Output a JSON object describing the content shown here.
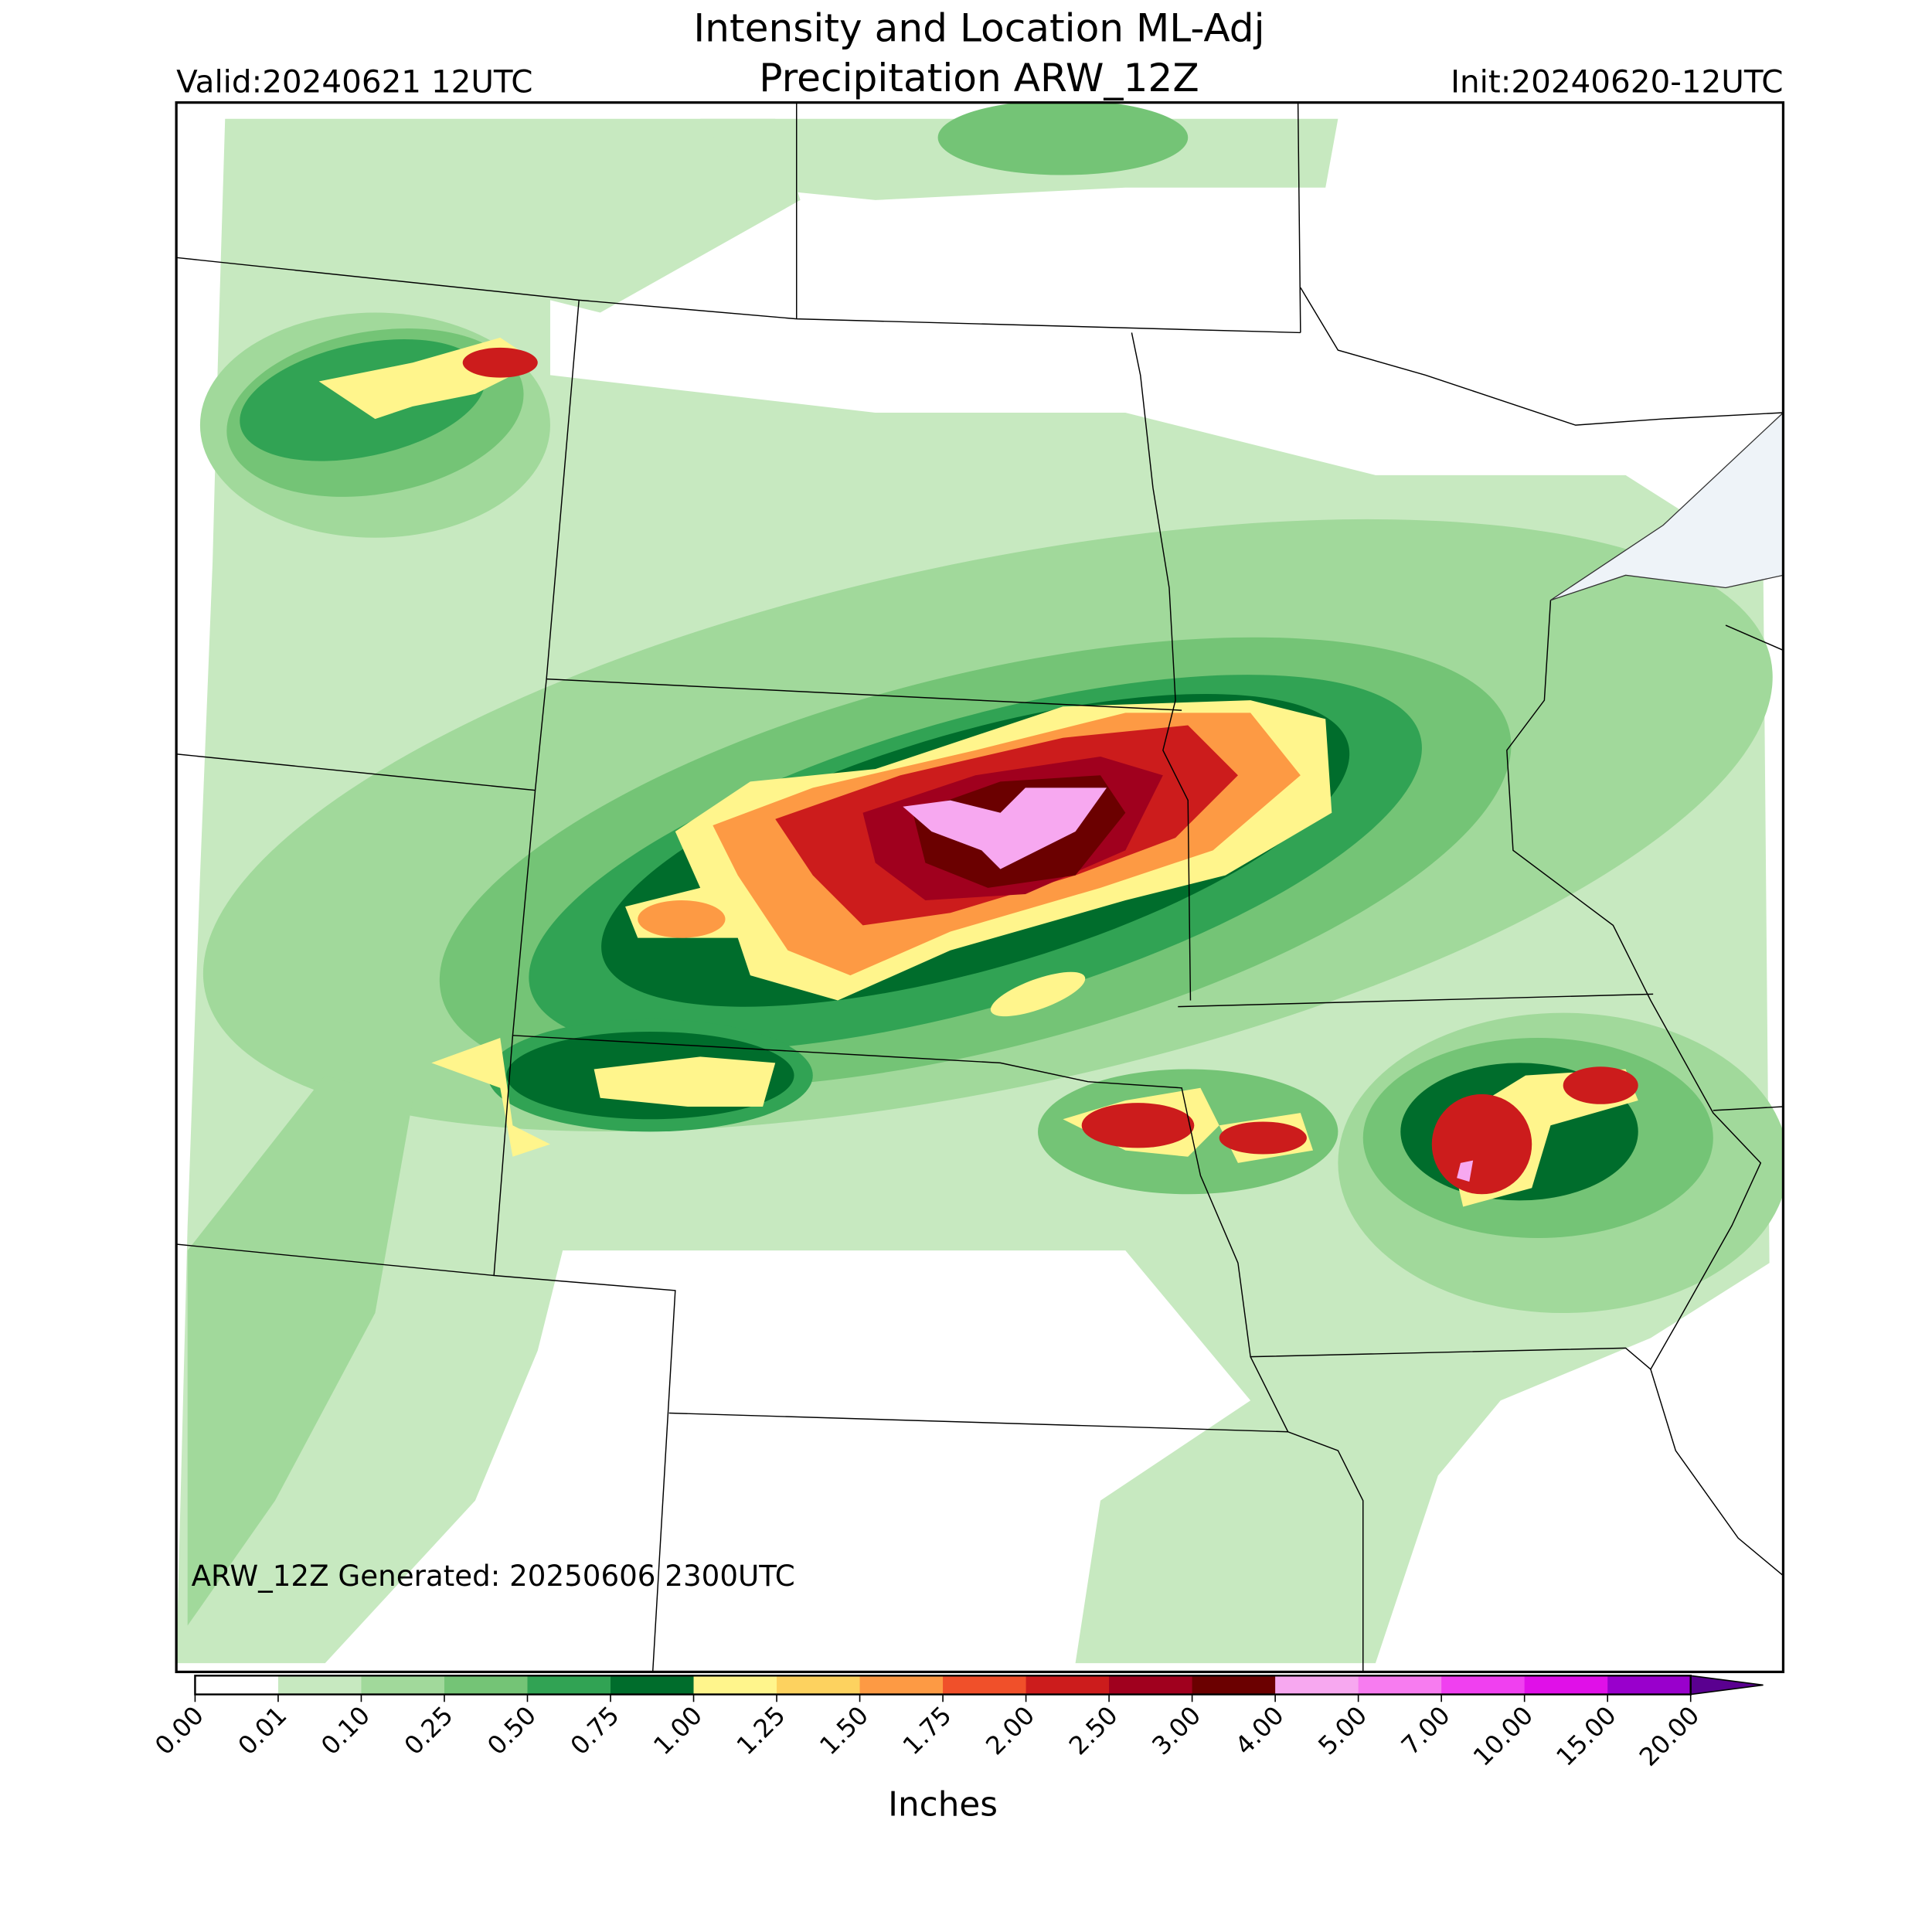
{
  "title_lines": [
    "Intensity and Location ML-Adj",
    "Precipitation ARW_12Z"
  ],
  "valid": "Valid:20240621 12UTC",
  "init": "Init:20240620-12UTC",
  "generated": "ARW_12Z Generated: 20250606 2300UTC",
  "colorbar": {
    "label": "Inches",
    "ticks": [
      {
        "value": 0,
        "label": "0.00"
      },
      {
        "value": 0.01,
        "label": "0.01"
      },
      {
        "value": 0.1,
        "label": "0.10"
      },
      {
        "value": 0.25,
        "label": "0.25"
      },
      {
        "value": 0.5,
        "label": "0.50"
      },
      {
        "value": 0.75,
        "label": "0.75"
      },
      {
        "value": 1,
        "label": "1.00"
      },
      {
        "value": 1.25,
        "label": "1.25"
      },
      {
        "value": 1.5,
        "label": "1.50"
      },
      {
        "value": 1.75,
        "label": "1.75"
      },
      {
        "value": 2,
        "label": "2.00"
      },
      {
        "value": 2.5,
        "label": "2.50"
      },
      {
        "value": 3,
        "label": "3.00"
      },
      {
        "value": 4,
        "label": "4.00"
      },
      {
        "value": 5,
        "label": "5.00"
      },
      {
        "value": 7,
        "label": "7.00"
      },
      {
        "value": 10,
        "label": "10.00"
      },
      {
        "value": 15,
        "label": "15.00"
      },
      {
        "value": 20,
        "label": "20.00"
      }
    ],
    "colors": [
      "#ffffff",
      "#c7e9c0",
      "#a1d99b",
      "#74c476",
      "#31a354",
      "#006d2c",
      "#fff58c",
      "#fdd25f",
      "#fd9a44",
      "#f0502a",
      "#cc1c1c",
      "#a0001e",
      "#6b0000",
      "#f7a8f0",
      "#f77cf0",
      "#f040f0",
      "#e010e8",
      "#9900cc",
      "#5a0090"
    ],
    "extend": "max"
  }
}
